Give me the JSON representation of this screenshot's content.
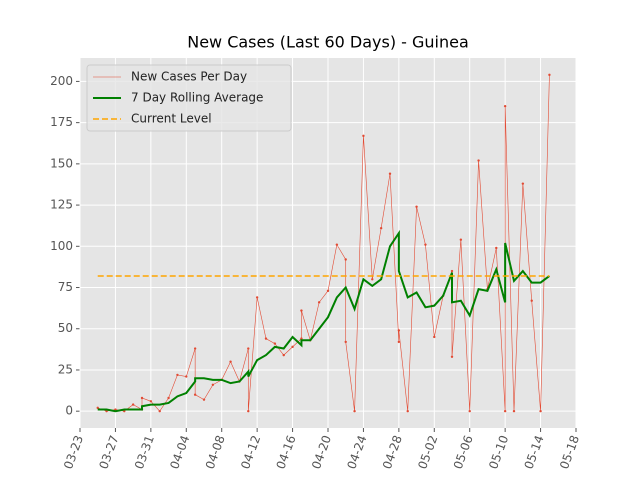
{
  "chart_data": {
    "type": "line",
    "title": "New Cases (Last 60 Days) - Guinea",
    "x": [
      "03-25",
      "03-26",
      "03-27",
      "03-28",
      "03-29",
      "03-30",
      "03-30",
      "03-31",
      "04-01",
      "04-02",
      "04-03",
      "04-04",
      "04-05",
      "04-05",
      "04-06",
      "04-07",
      "04-08",
      "04-09",
      "04-10",
      "04-11",
      "04-11",
      "04-12",
      "04-13",
      "04-14",
      "04-15",
      "04-16",
      "04-17",
      "04-17",
      "04-18",
      "04-19",
      "04-20",
      "04-21",
      "04-22",
      "04-22",
      "04-23",
      "04-24",
      "04-25",
      "04-26",
      "04-27",
      "04-28",
      "04-28",
      "04-29",
      "04-30",
      "05-01",
      "05-02",
      "05-03",
      "05-04",
      "05-04",
      "05-05",
      "05-06",
      "05-07",
      "05-08",
      "05-09",
      "05-10",
      "05-10",
      "05-11",
      "05-12",
      "05-13",
      "05-14",
      "05-15"
    ],
    "series": [
      {
        "name": "New Cases Per Day",
        "color": "#e24a33",
        "values": [
          2,
          0,
          1,
          0,
          4,
          1,
          8,
          6,
          0,
          8,
          22,
          21,
          38,
          10,
          7,
          16,
          19,
          30,
          18,
          38,
          0,
          69,
          44,
          41,
          34,
          39,
          44,
          61,
          43,
          66,
          73,
          101,
          92,
          42,
          0,
          167,
          80,
          111,
          144,
          42,
          49,
          0,
          124,
          101,
          45,
          70,
          85,
          33,
          104,
          0,
          152,
          74,
          99,
          0,
          185,
          0,
          138,
          67,
          0,
          204
        ]
      },
      {
        "name": "7 Day Rolling Average",
        "color": "#008000",
        "values": [
          1,
          1,
          0,
          1,
          1,
          1,
          3,
          4,
          4,
          5,
          9,
          11,
          18,
          20,
          20,
          19,
          19,
          17,
          18,
          24,
          21,
          31,
          34,
          39,
          38,
          45,
          40,
          43,
          43,
          50,
          57,
          69,
          75,
          75,
          62,
          80,
          76,
          80,
          100,
          108,
          85,
          69,
          72,
          63,
          64,
          70,
          84,
          66,
          67,
          58,
          74,
          73,
          86,
          66,
          102,
          79,
          85,
          78,
          78,
          82
        ]
      }
    ],
    "hline": {
      "name": "Current Level",
      "color": "#ffa500",
      "value": 82
    },
    "xlim": [
      "03-23",
      "05-18"
    ],
    "xticks": [
      "03-23",
      "03-27",
      "03-31",
      "04-04",
      "04-08",
      "04-12",
      "04-16",
      "04-20",
      "04-24",
      "04-28",
      "05-02",
      "05-06",
      "05-10",
      "05-14",
      "05-18"
    ],
    "ylim": [
      -10.2,
      214.2
    ],
    "yticks": [
      0,
      25,
      50,
      75,
      100,
      125,
      150,
      175,
      200
    ],
    "grid": true,
    "legend": "upper left"
  }
}
